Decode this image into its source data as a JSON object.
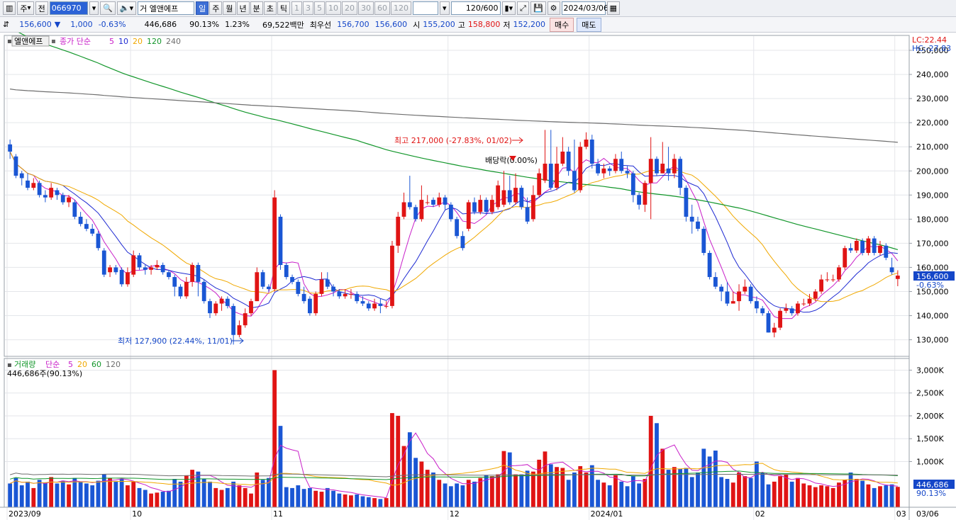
{
  "toolbar": {
    "type_label": "주",
    "jeon_label": "전",
    "code": "066970",
    "name": "엘앤에프",
    "name_prefix": "거",
    "periods": [
      "일",
      "주",
      "월",
      "년",
      "분",
      "초",
      "틱"
    ],
    "ticks": [
      "1",
      "3",
      "5",
      "10",
      "20",
      "30",
      "60",
      "120"
    ],
    "count": "120",
    "count_total": "/600",
    "date": "2024/03/06"
  },
  "quote": {
    "price": "156,600",
    "change_arrow": "▼",
    "change": "1,000",
    "change_pct": "-0.63%",
    "volume": "446,686",
    "vol_ratio": "90.13%",
    "turnover": "1.23%",
    "amount": "69,522백만",
    "best_label": "최우선",
    "best_ask": "156,700",
    "best_bid": "156,600",
    "open_label": "시",
    "open": "155,200",
    "high_label": "고",
    "high": "158,800",
    "low_label": "저",
    "low": "152,200",
    "buy_button": "매수",
    "sell_button": "매도"
  },
  "price_panel": {
    "name_tag": "엘앤에프",
    "ma_title": "종가 단순",
    "ma_periods": [
      "5",
      "10",
      "20",
      "120",
      "240"
    ],
    "ma_colors": [
      "#c81ec8",
      "#1e2ad2",
      "#f0a800",
      "#12962a",
      "#6e6e6e"
    ],
    "lc": "LC:22.44",
    "hc": "HC:-27.83",
    "y_ticks": [
      "250,000",
      "240,000",
      "230,000",
      "220,000",
      "210,000",
      "200,000",
      "190,000",
      "180,000",
      "170,000",
      "160,000",
      "150,000",
      "140,000",
      "130,000"
    ],
    "last_price": "156,600",
    "last_change": "-0.63%",
    "high_annotation": "최고 217,000 (-27.83%, 01/02)",
    "low_annotation": "최저 127,900 (22.44%, 11/01)",
    "dividend_annotation": "배당락(0.00%)"
  },
  "volume_panel": {
    "title": "거래량",
    "ma_title": "단순",
    "ma_periods": [
      "5",
      "20",
      "60",
      "120"
    ],
    "sub_label": "446,686주(90.13%)",
    "y_ticks": [
      "3,000K",
      "2,500K",
      "2,000K",
      "1,500K",
      "1,000K"
    ],
    "last_volume": "446,686",
    "last_ratio": "90.13%"
  },
  "x_axis": {
    "labels": [
      "2023/09",
      "10",
      "11",
      "12",
      "2024/01",
      "02",
      "03"
    ],
    "right_date": "03/06"
  },
  "chart_data": {
    "type": "candlestick",
    "title": "엘앤에프",
    "ylim": [
      124000,
      255000
    ],
    "volume_ylim_k": [
      0,
      3100
    ],
    "months": [
      {
        "label": "2023/09",
        "index": 0
      },
      {
        "label": "10",
        "index": 21
      },
      {
        "label": "11",
        "index": 45
      },
      {
        "label": "12",
        "index": 75
      },
      {
        "label": "2024/01",
        "index": 99
      },
      {
        "label": "02",
        "index": 127
      },
      {
        "label": "03",
        "index": 151
      }
    ],
    "candles": [
      [
        211000,
        208000,
        213000,
        205000,
        520
      ],
      [
        206000,
        198000,
        207000,
        197000,
        640
      ],
      [
        199000,
        197000,
        200000,
        194000,
        480
      ],
      [
        196000,
        193000,
        199000,
        192000,
        560
      ],
      [
        193000,
        195000,
        197000,
        192000,
        420
      ],
      [
        195000,
        190000,
        196000,
        189000,
        600
      ],
      [
        190000,
        189000,
        192000,
        187000,
        540
      ],
      [
        189000,
        193000,
        195000,
        188000,
        660
      ],
      [
        192000,
        190000,
        193000,
        188000,
        520
      ],
      [
        190000,
        187000,
        191000,
        186000,
        580
      ],
      [
        187000,
        189000,
        190000,
        185000,
        500
      ],
      [
        187000,
        181000,
        188000,
        180000,
        640
      ],
      [
        181000,
        178000,
        183000,
        177000,
        560
      ],
      [
        178000,
        176000,
        180000,
        175000,
        520
      ],
      [
        176000,
        174000,
        178000,
        173000,
        480
      ],
      [
        174000,
        168000,
        175000,
        167000,
        580
      ],
      [
        167000,
        157000,
        168000,
        156000,
        720
      ],
      [
        158000,
        160000,
        161000,
        156000,
        640
      ],
      [
        160000,
        158000,
        161000,
        157000,
        560
      ],
      [
        159000,
        153000,
        160000,
        152000,
        620
      ],
      [
        153000,
        158000,
        160000,
        152000,
        480
      ],
      [
        157000,
        165000,
        167000,
        156000,
        560
      ],
      [
        165000,
        160000,
        166000,
        159000,
        420
      ],
      [
        160000,
        159000,
        161000,
        157000,
        380
      ],
      [
        159000,
        160000,
        161000,
        157000,
        300
      ],
      [
        160000,
        161000,
        163000,
        159000,
        320
      ],
      [
        161000,
        158000,
        162000,
        157000,
        340
      ],
      [
        158000,
        156000,
        159000,
        155000,
        360
      ],
      [
        156000,
        152000,
        157000,
        148000,
        620
      ],
      [
        152000,
        148000,
        153000,
        147000,
        560
      ],
      [
        148000,
        154000,
        156000,
        147000,
        700
      ],
      [
        154000,
        161000,
        162000,
        152000,
        820
      ],
      [
        161000,
        154000,
        162000,
        148000,
        780
      ],
      [
        154000,
        146000,
        155000,
        145000,
        620
      ],
      [
        146000,
        141000,
        147000,
        139000,
        560
      ],
      [
        141000,
        145000,
        146000,
        140000,
        420
      ],
      [
        145000,
        147000,
        148000,
        142000,
        380
      ],
      [
        147000,
        144000,
        148000,
        143000,
        420
      ],
      [
        144000,
        132000,
        145000,
        128000,
        560
      ],
      [
        132000,
        136000,
        138000,
        131000,
        480
      ],
      [
        136000,
        141000,
        143000,
        135000,
        420
      ],
      [
        141000,
        146000,
        147000,
        140000,
        300
      ],
      [
        146000,
        158000,
        160000,
        146000,
        760
      ],
      [
        158000,
        152000,
        159000,
        151000,
        600
      ],
      [
        152000,
        151000,
        153000,
        150000,
        640
      ],
      [
        151000,
        189000,
        192000,
        150000,
        3000
      ],
      [
        181000,
        161000,
        182000,
        159000,
        1780
      ],
      [
        161000,
        156000,
        162000,
        155000,
        440
      ],
      [
        156000,
        154000,
        157000,
        153000,
        420
      ],
      [
        154000,
        149000,
        155000,
        148000,
        480
      ],
      [
        149000,
        146000,
        152000,
        145000,
        400
      ],
      [
        147000,
        141000,
        148000,
        140000,
        420
      ],
      [
        141000,
        149000,
        150000,
        140000,
        360
      ],
      [
        149000,
        155000,
        158000,
        148000,
        340
      ],
      [
        155000,
        152000,
        158000,
        151000,
        420
      ],
      [
        152000,
        150000,
        153000,
        148000,
        360
      ],
      [
        150000,
        148000,
        151000,
        147000,
        300
      ],
      [
        148000,
        149000,
        151000,
        147000,
        280
      ],
      [
        149000,
        149000,
        151000,
        147000,
        260
      ],
      [
        149000,
        146000,
        150000,
        145000,
        280
      ],
      [
        146000,
        145000,
        148000,
        144000,
        240
      ],
      [
        145000,
        143000,
        146000,
        142000,
        220
      ],
      [
        143000,
        145000,
        147000,
        142000,
        200
      ],
      [
        145000,
        144000,
        147000,
        141000,
        180
      ],
      [
        144000,
        144000,
        146000,
        143000,
        200
      ],
      [
        144000,
        169000,
        171000,
        143000,
        2060
      ],
      [
        169000,
        181000,
        183000,
        166000,
        2000
      ],
      [
        181000,
        187000,
        191000,
        180000,
        1340
      ],
      [
        187000,
        185000,
        198000,
        184000,
        1640
      ],
      [
        185000,
        180000,
        186000,
        179000,
        1080
      ],
      [
        180000,
        188000,
        194000,
        179000,
        1000
      ],
      [
        187000,
        187000,
        190000,
        186000,
        820
      ],
      [
        188000,
        186000,
        189000,
        185000,
        760
      ],
      [
        186000,
        189000,
        191000,
        185000,
        600
      ],
      [
        189000,
        186000,
        190000,
        184000,
        520
      ],
      [
        186000,
        180000,
        187000,
        179000,
        460
      ],
      [
        180000,
        173000,
        181000,
        172000,
        520
      ],
      [
        173000,
        168000,
        175000,
        167000,
        480
      ],
      [
        176000,
        187000,
        188000,
        175000,
        600
      ],
      [
        187000,
        183000,
        189000,
        182000,
        560
      ],
      [
        183000,
        188000,
        190000,
        182000,
        640
      ],
      [
        188000,
        183000,
        189000,
        182000,
        700
      ],
      [
        183000,
        188000,
        190000,
        182000,
        680
      ],
      [
        185000,
        194000,
        196000,
        184000,
        720
      ],
      [
        186000,
        192000,
        200000,
        185000,
        1230
      ],
      [
        192000,
        187000,
        198000,
        186000,
        1200
      ],
      [
        187000,
        193000,
        199000,
        186000,
        720
      ],
      [
        193000,
        185000,
        194000,
        184000,
        720
      ],
      [
        185000,
        179000,
        189000,
        178000,
        800
      ],
      [
        180000,
        190000,
        194000,
        179000,
        780
      ],
      [
        190000,
        199000,
        201000,
        189000,
        1040
      ],
      [
        196000,
        203000,
        217000,
        195000,
        1220
      ],
      [
        203000,
        193000,
        217000,
        192000,
        940
      ],
      [
        193000,
        203000,
        210000,
        192000,
        880
      ],
      [
        203000,
        208000,
        214000,
        202000,
        860
      ],
      [
        208000,
        200000,
        210000,
        198000,
        600
      ],
      [
        200000,
        192000,
        213000,
        191000,
        760
      ],
      [
        192000,
        210000,
        212000,
        191000,
        900
      ],
      [
        210000,
        213000,
        216000,
        209000,
        760
      ],
      [
        213000,
        203000,
        215000,
        201000,
        920
      ],
      [
        203000,
        199000,
        205000,
        198000,
        600
      ],
      [
        199000,
        201000,
        203000,
        197000,
        540
      ],
      [
        201000,
        200000,
        202000,
        198000,
        480
      ],
      [
        200000,
        205000,
        207000,
        199000,
        700
      ],
      [
        205000,
        200000,
        208000,
        199000,
        560
      ],
      [
        200000,
        199000,
        202000,
        197000,
        460
      ],
      [
        199000,
        190000,
        200000,
        187000,
        680
      ],
      [
        190000,
        186000,
        191000,
        184000,
        520
      ],
      [
        186000,
        195000,
        196000,
        183000,
        620
      ],
      [
        195000,
        205000,
        214000,
        180000,
        2000
      ],
      [
        205000,
        199000,
        206000,
        198000,
        1840
      ],
      [
        199000,
        203000,
        212000,
        199000,
        1280
      ],
      [
        201000,
        199000,
        210000,
        196000,
        820
      ],
      [
        199000,
        205000,
        207000,
        197000,
        880
      ],
      [
        205000,
        193000,
        206000,
        190000,
        840
      ],
      [
        193000,
        181000,
        194000,
        179000,
        860
      ],
      [
        181000,
        179000,
        186000,
        174000,
        660
      ],
      [
        179000,
        176000,
        181000,
        175000,
        760
      ],
      [
        176000,
        166000,
        177000,
        165000,
        1280
      ],
      [
        166000,
        156000,
        167000,
        155000,
        1110
      ],
      [
        156000,
        152000,
        158000,
        151000,
        1240
      ],
      [
        152000,
        150000,
        153000,
        146000,
        660
      ],
      [
        150000,
        145000,
        154000,
        144000,
        620
      ],
      [
        145000,
        146000,
        150000,
        145000,
        540
      ],
      [
        146000,
        150000,
        153000,
        142000,
        760
      ],
      [
        150000,
        152000,
        155000,
        149000,
        680
      ],
      [
        152000,
        146000,
        153000,
        145000,
        640
      ],
      [
        146000,
        143000,
        148000,
        141000,
        1000
      ],
      [
        143000,
        141000,
        144000,
        140000,
        760
      ],
      [
        141000,
        133000,
        142000,
        133000,
        500
      ],
      [
        133000,
        135000,
        137000,
        131000,
        560
      ],
      [
        135000,
        142000,
        143000,
        134000,
        680
      ],
      [
        142000,
        143000,
        145000,
        141000,
        720
      ],
      [
        143000,
        141000,
        144000,
        140000,
        560
      ],
      [
        141000,
        145000,
        146000,
        140000,
        640
      ],
      [
        145000,
        145000,
        147000,
        144000,
        520
      ],
      [
        145000,
        147000,
        149000,
        144000,
        480
      ],
      [
        147000,
        150000,
        151000,
        146000,
        440
      ],
      [
        150000,
        155000,
        157000,
        149000,
        480
      ],
      [
        155000,
        155000,
        158000,
        154000,
        460
      ],
      [
        155000,
        155000,
        157000,
        154000,
        420
      ],
      [
        155000,
        160000,
        161000,
        154000,
        540
      ],
      [
        160000,
        168000,
        169000,
        159000,
        600
      ],
      [
        168000,
        167000,
        170000,
        166000,
        760
      ],
      [
        167000,
        171000,
        172000,
        166000,
        620
      ],
      [
        171000,
        166000,
        172000,
        165000,
        580
      ],
      [
        166000,
        172000,
        173000,
        165000,
        500
      ],
      [
        172000,
        166000,
        173000,
        165000,
        420
      ],
      [
        166000,
        169000,
        171000,
        165000,
        460
      ],
      [
        169000,
        164000,
        170000,
        163000,
        480
      ],
      [
        160000,
        158000,
        164000,
        157000,
        500
      ],
      [
        155200,
        156600,
        158800,
        152200,
        446
      ]
    ]
  }
}
